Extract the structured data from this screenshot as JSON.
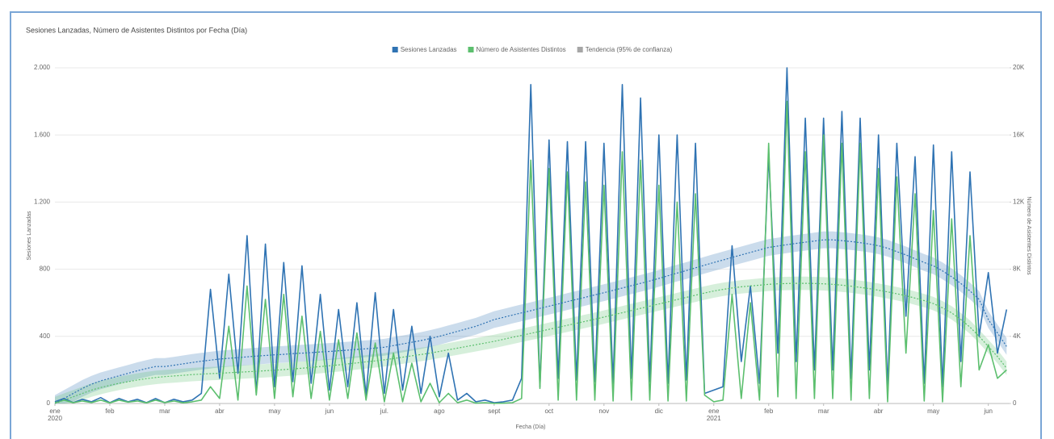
{
  "chart_data": {
    "type": "line",
    "title": "Sesiones Lanzadas, Número de Asistentes Distintos por Fecha (Día)",
    "x_label": "Fecha (Día)",
    "y_label": "Sesiones Lanzadas",
    "y2_label": "Número de Asistentes Distintos",
    "grid": true,
    "legend_position": "top",
    "categories": [
      "ene\n2020",
      null,
      null,
      null,
      null,
      null,
      "feb",
      null,
      null,
      null,
      null,
      null,
      "mar",
      null,
      null,
      null,
      null,
      null,
      "abr",
      null,
      null,
      null,
      null,
      null,
      "may",
      null,
      null,
      null,
      null,
      null,
      "jun",
      null,
      null,
      null,
      null,
      null,
      "jul.",
      null,
      null,
      null,
      null,
      null,
      "ago",
      null,
      null,
      null,
      null,
      null,
      "sept",
      null,
      null,
      null,
      null,
      null,
      "oct",
      null,
      null,
      null,
      null,
      null,
      "nov",
      null,
      null,
      null,
      null,
      null,
      "dic",
      null,
      null,
      null,
      null,
      null,
      "ene\n2021",
      null,
      null,
      null,
      null,
      null,
      "feb",
      null,
      null,
      null,
      null,
      null,
      "mar",
      null,
      null,
      null,
      null,
      null,
      "abr",
      null,
      null,
      null,
      null,
      null,
      "may",
      null,
      null,
      null,
      null,
      null,
      "jun",
      null,
      null
    ],
    "ylim": [
      0,
      2000
    ],
    "yticks": [
      0,
      400,
      800,
      {
        "value": 1200,
        "label": "1.200"
      },
      {
        "value": 1600,
        "label": "1.600"
      },
      {
        "value": 2000,
        "label": "2.000"
      }
    ],
    "y2lim": [
      0,
      20000
    ],
    "y2ticks": [
      0,
      {
        "value": 4000,
        "label": "4K"
      },
      {
        "value": 8000,
        "label": "8K"
      },
      {
        "value": 12000,
        "label": "12K"
      },
      {
        "value": 16000,
        "label": "16K"
      },
      {
        "value": 20000,
        "label": "20K"
      }
    ],
    "series": [
      {
        "name": "Sesiones Lanzadas",
        "color": "#2f73b3",
        "values": [
          10,
          30,
          5,
          25,
          10,
          35,
          5,
          30,
          10,
          25,
          5,
          30,
          5,
          25,
          10,
          20,
          60,
          680,
          150,
          770,
          180,
          1000,
          60,
          950,
          100,
          840,
          130,
          820,
          120,
          650,
          80,
          560,
          100,
          600,
          50,
          660,
          60,
          560,
          80,
          460,
          60,
          400,
          40,
          300,
          20,
          60,
          10,
          20,
          5,
          10,
          20,
          150,
          1900,
          100,
          1570,
          150,
          1560,
          140,
          1560,
          130,
          1550,
          120,
          1900,
          150,
          1820,
          130,
          1600,
          120,
          1600,
          140,
          1550,
          60,
          80,
          100,
          940,
          250,
          700,
          120,
          1480,
          300,
          2000,
          250,
          1700,
          200,
          1700,
          200,
          1740,
          150,
          1700,
          200,
          1600,
          100,
          1550,
          520,
          1470,
          120,
          1540,
          100,
          1500,
          250,
          1380,
          400,
          780,
          300,
          560
        ]
      },
      {
        "name": "Número de Asistentes Distintos",
        "color": "#5cbf6e",
        "axis": "y2",
        "values": [
          50,
          200,
          50,
          150,
          60,
          200,
          40,
          200,
          80,
          150,
          40,
          200,
          60,
          150,
          40,
          100,
          200,
          1000,
          300,
          4600,
          200,
          7000,
          500,
          6200,
          300,
          6500,
          400,
          5200,
          300,
          4300,
          200,
          3800,
          300,
          4200,
          200,
          3600,
          100,
          3000,
          100,
          2400,
          100,
          1200,
          50,
          600,
          50,
          200,
          20,
          50,
          10,
          20,
          50,
          300,
          14500,
          900,
          14000,
          200,
          13800,
          200,
          13200,
          200,
          13000,
          150,
          15000,
          200,
          14500,
          200,
          13000,
          150,
          12000,
          150,
          12500,
          500,
          100,
          200,
          6500,
          300,
          6000,
          200,
          15500,
          400,
          18000,
          300,
          15000,
          300,
          16000,
          300,
          15500,
          200,
          15500,
          300,
          14000,
          100,
          13500,
          3000,
          12500,
          150,
          11500,
          100,
          11000,
          1000,
          10000,
          2000,
          3500,
          1500,
          2000
        ]
      }
    ],
    "trend": {
      "name": "Tendencia (95% de confianza)",
      "color": "#a6a6a6",
      "series": [
        {
          "color": "#2f73b3",
          "ci": 50,
          "values": [
            0,
            30,
            60,
            90,
            115,
            135,
            150,
            165,
            180,
            195,
            208,
            220,
            220,
            228,
            236,
            244,
            252,
            258,
            265,
            269,
            273,
            278,
            282,
            286,
            290,
            293,
            297,
            300,
            303,
            307,
            310,
            314,
            318,
            322,
            326,
            330,
            335,
            345,
            355,
            365,
            375,
            387,
            400,
            415,
            430,
            445,
            460,
            480,
            500,
            513,
            527,
            540,
            553,
            567,
            580,
            593,
            607,
            620,
            633,
            647,
            660,
            674,
            688,
            702,
            716,
            730,
            745,
            761,
            777,
            792,
            808,
            824,
            840,
            855,
            870,
            885,
            900,
            915,
            930,
            938,
            946,
            954,
            961,
            968,
            975,
            975,
            970,
            965,
            958,
            950,
            940,
            925,
            905,
            885,
            862,
            840,
            820,
            790,
            755,
            715,
            670,
            620,
            500,
            420,
            340
          ]
        },
        {
          "color": "#5cbf6e",
          "axis": "y2",
          "ci": 400,
          "values": [
            0,
            200,
            400,
            600,
            800,
            950,
            1080,
            1200,
            1300,
            1400,
            1480,
            1550,
            1600,
            1640,
            1680,
            1720,
            1750,
            1780,
            1800,
            1830,
            1860,
            1890,
            1920,
            1950,
            1980,
            2020,
            2060,
            2100,
            2150,
            2200,
            2250,
            2300,
            2360,
            2420,
            2480,
            2540,
            2600,
            2680,
            2760,
            2840,
            2920,
            3000,
            3100,
            3200,
            3300,
            3400,
            3500,
            3600,
            3700,
            3820,
            3940,
            4060,
            4180,
            4300,
            4420,
            4540,
            4660,
            4780,
            4900,
            5020,
            5150,
            5280,
            5410,
            5540,
            5670,
            5800,
            5930,
            6060,
            6190,
            6320,
            6450,
            6580,
            6700,
            6800,
            6880,
            6950,
            7000,
            7050,
            7100,
            7130,
            7150,
            7160,
            7160,
            7150,
            7130,
            7100,
            7050,
            6990,
            6920,
            6840,
            6750,
            6650,
            6540,
            6420,
            6280,
            6130,
            5950,
            5700,
            5400,
            5000,
            4550,
            4000,
            3400,
            2800,
            2100
          ]
        }
      ]
    }
  }
}
